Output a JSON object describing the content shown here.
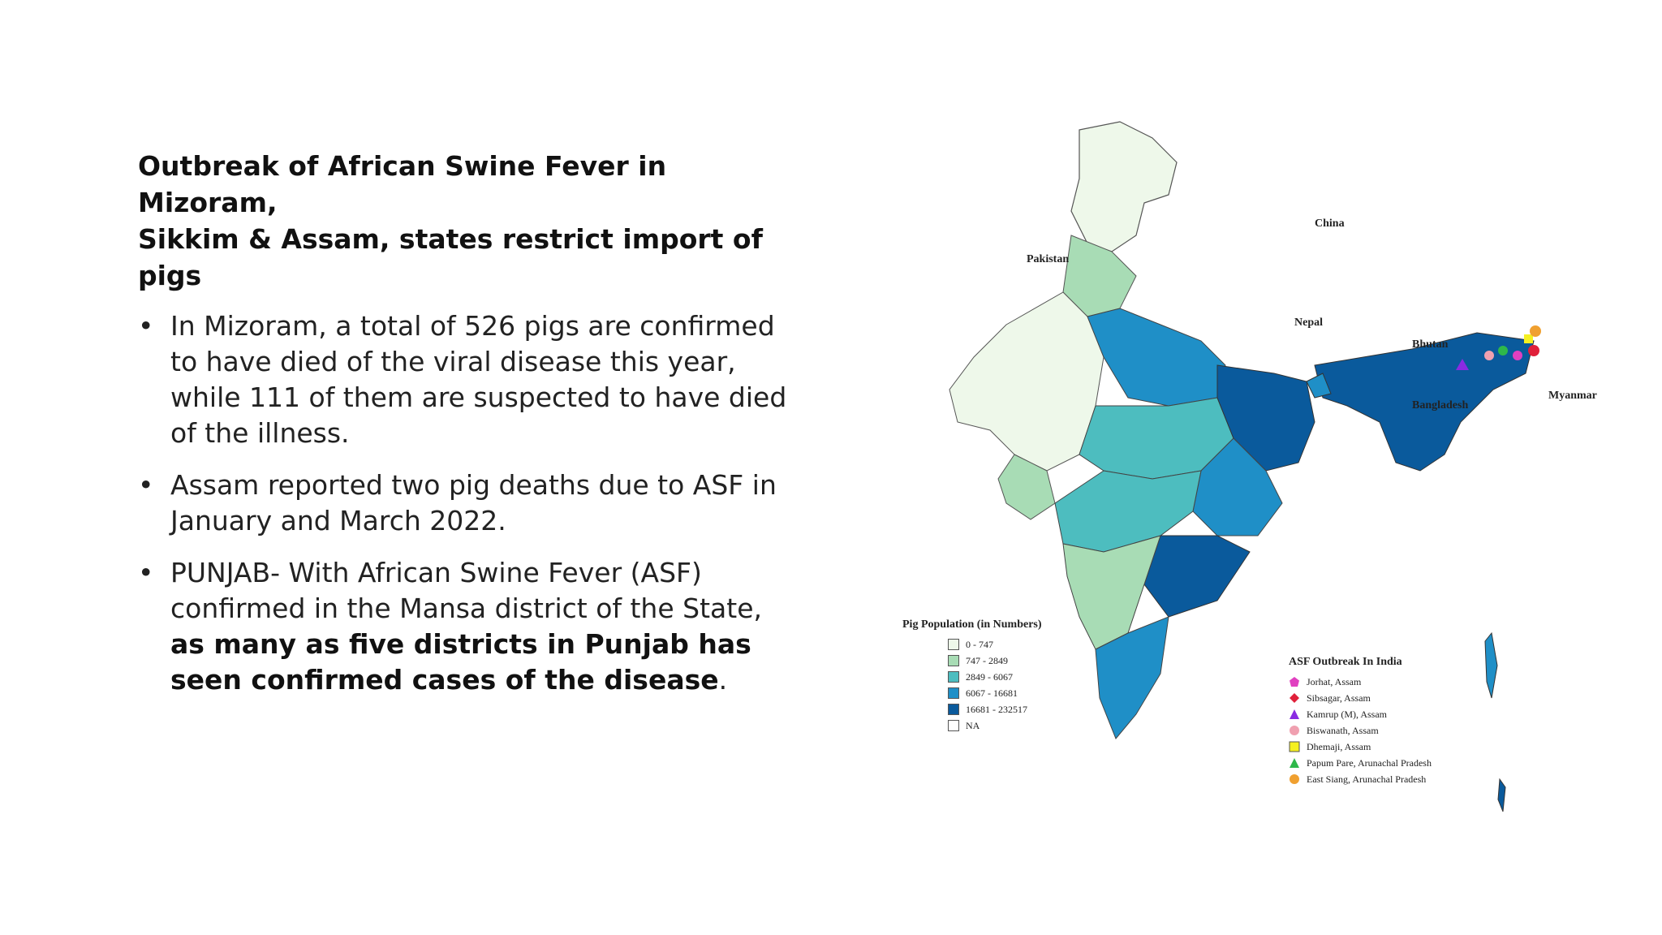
{
  "title_line1": "Outbreak of African Swine Fever in Mizoram,",
  "title_line2": "Sikkim & Assam, states restrict import of pigs",
  "bullets": [
    {
      "text": "In Mizoram, a total of 526 pigs are confirmed to have died of the viral disease this year, while 111 of them are suspected to have died of the illness."
    },
    {
      "text": "Assam reported two pig deaths due to ASF in January and March 2022."
    },
    {
      "text_plain": "PUNJAB- With African Swine Fever (ASF) confirmed in the Mansa district of the State, ",
      "text_bold": "as many as five districts in Punjab has seen confirmed cases of the disease",
      "text_end": "."
    }
  ],
  "bullet_char": "•",
  "map": {
    "labels": {
      "china": "China",
      "pakistan": "Pakistan",
      "nepal": "Nepal",
      "bhutan": "Bhutan",
      "bangladesh": "Bangladesh",
      "myanmar": "Myanmar"
    },
    "pig_legend": {
      "title": "Pig Population (in Numbers)",
      "items": [
        {
          "label": "0 - 747",
          "color": "#eef8ea"
        },
        {
          "label": "747 - 2849",
          "color": "#a8dcb5"
        },
        {
          "label": "2849 - 6067",
          "color": "#4dbdbf"
        },
        {
          "label": "6067 - 16681",
          "color": "#1f8fc7"
        },
        {
          "label": "16681 - 232517",
          "color": "#0a5a9c"
        },
        {
          "label": "NA",
          "color": "#ffffff"
        }
      ]
    },
    "asf_legend": {
      "title": "ASF Outbreak In India",
      "items": [
        {
          "label": "Jorhat, Assam",
          "color": "#e040c0",
          "shape": "pentagon"
        },
        {
          "label": "Sibsagar, Assam",
          "color": "#e0203a",
          "shape": "diamond"
        },
        {
          "label": "Kamrup (M), Assam",
          "color": "#8a2be2",
          "shape": "triangle"
        },
        {
          "label": "Biswanath, Assam",
          "color": "#f0a0b0",
          "shape": "circle"
        },
        {
          "label": "Dhemaji, Assam",
          "color": "#f5f020",
          "shape": "square"
        },
        {
          "label": "Papum Pare, Arunachal Pradesh",
          "color": "#2eb84a",
          "shape": "triangle"
        },
        {
          "label": "East Siang, Arunachal Pradesh",
          "color": "#f0a030",
          "shape": "circle"
        }
      ]
    }
  }
}
